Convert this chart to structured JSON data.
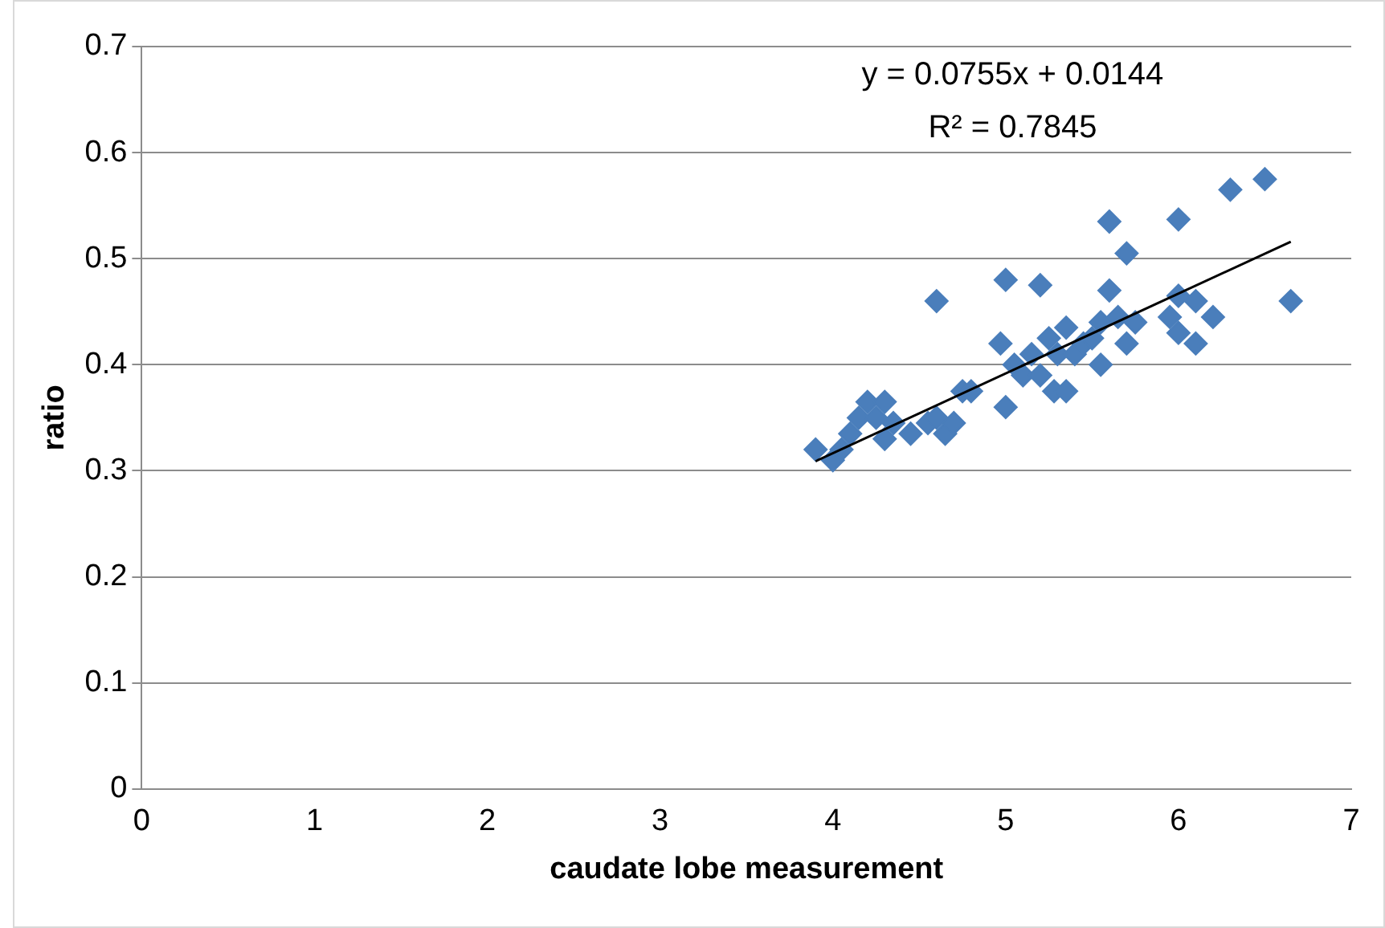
{
  "chart_data": {
    "type": "scatter",
    "xlabel": "caudate lobe measurement",
    "ylabel": "ratio",
    "xlim": [
      0,
      7
    ],
    "xticks": [
      0,
      1,
      2,
      3,
      4,
      5,
      6,
      7
    ],
    "ylim": [
      0,
      0.7
    ],
    "yticks": [
      0,
      0.1,
      0.2,
      0.3,
      0.4,
      0.5,
      0.6,
      0.7
    ],
    "grid": "y",
    "legend": false,
    "marker": "diamond",
    "annotations": [
      "y = 0.0755x + 0.0144",
      "R² = 0.7845"
    ],
    "series": [
      {
        "type": "scatter",
        "color": "#4a7ebb",
        "x": [
          3.9,
          4.0,
          4.05,
          4.1,
          4.15,
          4.2,
          4.25,
          4.3,
          4.3,
          4.35,
          4.45,
          4.55,
          4.65,
          4.7,
          4.6,
          4.6,
          4.75,
          4.8,
          5.0,
          4.97,
          5.0,
          5.05,
          5.1,
          5.15,
          5.2,
          5.2,
          5.25,
          5.28,
          5.3,
          5.35,
          5.4,
          5.35,
          5.45,
          5.5,
          5.55,
          5.55,
          5.6,
          5.7,
          5.6,
          5.65,
          5.7,
          5.75,
          5.7,
          6.0,
          6.0,
          5.95,
          6.0,
          6.1,
          6.1,
          6.2,
          6.3,
          6.5,
          6.65
        ],
        "values": [
          0.32,
          0.31,
          0.32,
          0.335,
          0.35,
          0.365,
          0.35,
          0.33,
          0.365,
          0.345,
          0.335,
          0.345,
          0.335,
          0.345,
          0.46,
          0.35,
          0.375,
          0.375,
          0.48,
          0.42,
          0.36,
          0.4,
          0.39,
          0.41,
          0.475,
          0.39,
          0.425,
          0.375,
          0.41,
          0.435,
          0.41,
          0.375,
          0.42,
          0.425,
          0.44,
          0.4,
          0.535,
          0.505,
          0.47,
          0.445,
          null,
          0.44,
          0.42,
          0.537,
          0.465,
          0.445,
          0.43,
          0.42,
          0.46,
          0.445,
          0.565,
          0.575,
          0.46
        ]
      },
      {
        "type": "line",
        "color": "#000000",
        "x": [
          3.9,
          6.65
        ],
        "values": [
          0.309,
          0.516
        ],
        "marker": "none",
        "line_style": "solid"
      }
    ]
  }
}
